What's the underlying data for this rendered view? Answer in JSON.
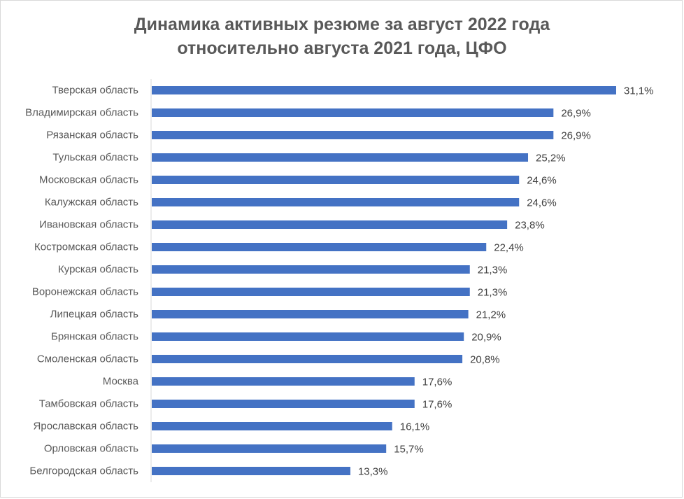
{
  "chart_data": {
    "type": "bar",
    "orientation": "horizontal",
    "title": [
      "Динамика активных резюме за август 2022 года",
      "относительно августа 2021 года, ЦФО"
    ],
    "categories": [
      "Тверская область",
      "Владимирская область",
      "Рязанская область",
      "Тульская область",
      "Московская область",
      "Калужская область",
      "Ивановская область",
      "Костромская область",
      "Курская область",
      "Воронежская область",
      "Липецкая область",
      "Брянская область",
      "Смоленская область",
      "Москва",
      "Тамбовская область",
      "Ярославская область",
      "Орловская область",
      "Белгородская область"
    ],
    "values": [
      31.1,
      26.9,
      26.9,
      25.2,
      24.6,
      24.6,
      23.8,
      22.4,
      21.3,
      21.3,
      21.2,
      20.9,
      20.8,
      17.6,
      17.6,
      16.1,
      15.7,
      13.3
    ],
    "value_labels": [
      "31,1%",
      "26,9%",
      "26,9%",
      "25,2%",
      "24,6%",
      "24,6%",
      "23,8%",
      "22,4%",
      "21,3%",
      "21,3%",
      "21,2%",
      "20,9%",
      "20,8%",
      "17,6%",
      "17,6%",
      "16,1%",
      "15,7%",
      "13,3%"
    ],
    "unit": "%",
    "xlabel": "",
    "ylabel": "",
    "xlim": [
      0,
      32
    ],
    "grid": false,
    "legend": "none",
    "bar_color": "#4472C4"
  }
}
